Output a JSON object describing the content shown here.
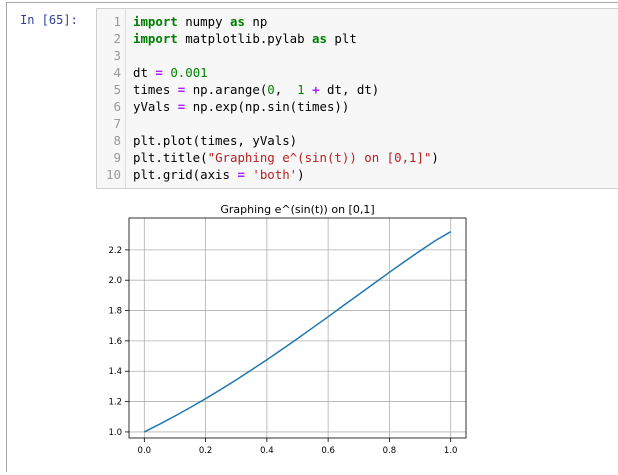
{
  "prompt": "In [65]:",
  "code_lines": [
    {
      "n": "1",
      "tokens": [
        {
          "t": "import",
          "c": "kw"
        },
        {
          "t": " numpy ",
          "c": ""
        },
        {
          "t": "as",
          "c": "kw"
        },
        {
          "t": " np",
          "c": ""
        }
      ]
    },
    {
      "n": "2",
      "tokens": [
        {
          "t": "import",
          "c": "kw"
        },
        {
          "t": " matplotlib.pylab ",
          "c": ""
        },
        {
          "t": "as",
          "c": "kw"
        },
        {
          "t": " plt",
          "c": ""
        }
      ]
    },
    {
      "n": "3",
      "tokens": []
    },
    {
      "n": "4",
      "tokens": [
        {
          "t": "dt ",
          "c": ""
        },
        {
          "t": "=",
          "c": "op"
        },
        {
          "t": " ",
          "c": ""
        },
        {
          "t": "0.001",
          "c": "num"
        }
      ]
    },
    {
      "n": "5",
      "tokens": [
        {
          "t": "times ",
          "c": ""
        },
        {
          "t": "=",
          "c": "op"
        },
        {
          "t": " np.arange(",
          "c": ""
        },
        {
          "t": "0",
          "c": "num"
        },
        {
          "t": ",  ",
          "c": ""
        },
        {
          "t": "1",
          "c": "num"
        },
        {
          "t": " ",
          "c": ""
        },
        {
          "t": "+",
          "c": "op"
        },
        {
          "t": " dt, dt)",
          "c": ""
        }
      ]
    },
    {
      "n": "6",
      "tokens": [
        {
          "t": "yVals ",
          "c": ""
        },
        {
          "t": "=",
          "c": "op"
        },
        {
          "t": " np.exp(np.sin(times))",
          "c": ""
        }
      ]
    },
    {
      "n": "7",
      "tokens": []
    },
    {
      "n": "8",
      "tokens": [
        {
          "t": "plt.plot(times, yVals)",
          "c": ""
        }
      ]
    },
    {
      "n": "9",
      "tokens": [
        {
          "t": "plt.title(",
          "c": ""
        },
        {
          "t": "\"Graphing e^(sin(t)) on [0,1]\"",
          "c": "str"
        },
        {
          "t": ")",
          "c": ""
        }
      ]
    },
    {
      "n": "10",
      "tokens": [
        {
          "t": "plt.grid(axis ",
          "c": ""
        },
        {
          "t": "=",
          "c": "op"
        },
        {
          "t": " ",
          "c": ""
        },
        {
          "t": "'both'",
          "c": "str"
        },
        {
          "t": ")",
          "c": ""
        }
      ]
    }
  ],
  "chart_data": {
    "type": "line",
    "title": "Graphing e^(sin(t)) on [0,1]",
    "xlabel": "",
    "ylabel": "",
    "xlim": [
      -0.05,
      1.05
    ],
    "ylim": [
      0.96,
      2.41
    ],
    "x_ticks": [
      0.0,
      0.2,
      0.4,
      0.6,
      0.8,
      1.0
    ],
    "x_tick_labels": [
      "0.0",
      "0.2",
      "0.4",
      "0.6",
      "0.8",
      "1.0"
    ],
    "y_ticks": [
      1.0,
      1.2,
      1.4,
      1.6,
      1.8,
      2.0,
      2.2
    ],
    "y_tick_labels": [
      "1.0",
      "1.2",
      "1.4",
      "1.6",
      "1.8",
      "2.0",
      "2.2"
    ],
    "grid": true,
    "series": [
      {
        "x": [
          0.0,
          0.05,
          0.1,
          0.15,
          0.2,
          0.25,
          0.3,
          0.35,
          0.4,
          0.45,
          0.5,
          0.55,
          0.6,
          0.65,
          0.7,
          0.75,
          0.8,
          0.85,
          0.9,
          0.95,
          1.0
        ],
        "y": [
          1.0,
          1.051,
          1.105,
          1.161,
          1.219,
          1.28,
          1.343,
          1.409,
          1.476,
          1.545,
          1.615,
          1.687,
          1.759,
          1.833,
          1.906,
          1.979,
          2.052,
          2.123,
          2.193,
          2.261,
          2.32
        ],
        "color": "#1f77b4"
      }
    ]
  }
}
